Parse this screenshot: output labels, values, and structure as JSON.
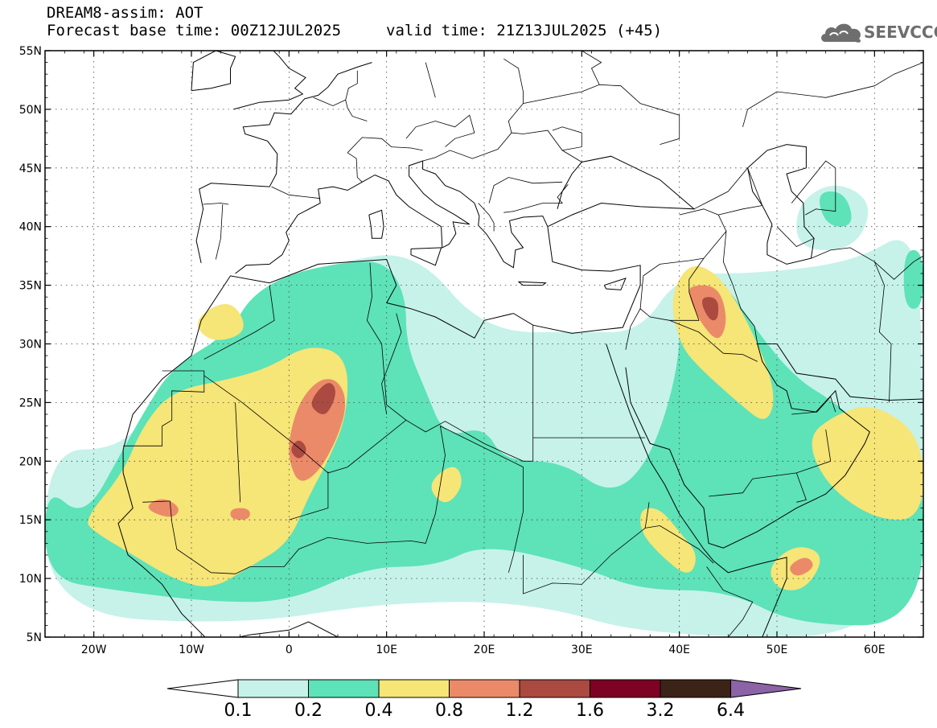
{
  "header": {
    "line1": "DREAM8-assim: AOT",
    "line2_left": "Forecast base time: 00Z12JUL2025",
    "line2_right": "valid time: 21Z13JUL2025 (+45)"
  },
  "logo": {
    "text": "SEEVCCC",
    "icon": "cloud-logo-icon",
    "color": "#6e6e6e"
  },
  "map": {
    "lon_range": [
      -25,
      65
    ],
    "lat_range": [
      5,
      55
    ],
    "lat_ticks": [
      {
        "lat": 55,
        "label": "55N"
      },
      {
        "lat": 50,
        "label": "50N"
      },
      {
        "lat": 45,
        "label": "45N"
      },
      {
        "lat": 40,
        "label": "40N"
      },
      {
        "lat": 35,
        "label": "35N"
      },
      {
        "lat": 30,
        "label": "30N"
      },
      {
        "lat": 25,
        "label": "25N"
      },
      {
        "lat": 20,
        "label": "20N"
      },
      {
        "lat": 15,
        "label": "15N"
      },
      {
        "lat": 10,
        "label": "10N"
      },
      {
        "lat": 5,
        "label": "5N"
      }
    ],
    "lon_ticks": [
      {
        "lon": -20,
        "label": "20W"
      },
      {
        "lon": -10,
        "label": "10W"
      },
      {
        "lon": 0,
        "label": "0"
      },
      {
        "lon": 10,
        "label": "10E"
      },
      {
        "lon": 20,
        "label": "20E"
      },
      {
        "lon": 30,
        "label": "30E"
      },
      {
        "lon": 40,
        "label": "40E"
      },
      {
        "lon": 50,
        "label": "50E"
      },
      {
        "lon": 60,
        "label": "60E"
      }
    ],
    "gridlines": true
  },
  "colorbar": {
    "colors": [
      "#c6f2ea",
      "#5ee2b8",
      "#f6e577",
      "#eb8a68",
      "#aa4a40",
      "#7d0224",
      "#3c2318"
    ],
    "over_color": "#8c63a6",
    "under_color": "#ffffff",
    "labels": [
      "0.1",
      "0.2",
      "0.4",
      "0.8",
      "1.2",
      "1.6",
      "3.2",
      "6.4"
    ]
  },
  "field": {
    "name": "AOT",
    "levels": [
      {
        "level": 0.1,
        "regions": [
          [
            [
              -25,
              21
            ],
            [
              -17,
              21
            ],
            [
              -13,
              26
            ],
            [
              -8,
              30
            ],
            [
              -2,
              35
            ],
            [
              5,
              37
            ],
            [
              13,
              38
            ],
            [
              20,
              31
            ],
            [
              30,
              31
            ],
            [
              36,
              31
            ],
            [
              40,
              36
            ],
            [
              48,
              36
            ],
            [
              58,
              37
            ],
            [
              64,
              40
            ],
            [
              65,
              30
            ],
            [
              65,
              5
            ],
            [
              37,
              5
            ],
            [
              25,
              8
            ],
            [
              10,
              8
            ],
            [
              -5,
              6
            ],
            [
              -25,
              7
            ]
          ],
          [
            [
              56,
              44
            ],
            [
              52,
              42
            ],
            [
              52,
              38
            ],
            [
              58,
              38
            ],
            [
              60,
              42
            ]
          ]
        ]
      },
      {
        "level": 0.2,
        "regions": [
          [
            [
              -25,
              18
            ],
            [
              -21,
              15
            ],
            [
              -17,
              21
            ],
            [
              -15,
              24
            ],
            [
              -12,
              28
            ],
            [
              -6,
              31
            ],
            [
              -4,
              34
            ],
            [
              0,
              36
            ],
            [
              6,
              37
            ],
            [
              10,
              37
            ],
            [
              12,
              34
            ],
            [
              12,
              30
            ],
            [
              14,
              26
            ],
            [
              16,
              22
            ],
            [
              20,
              23
            ],
            [
              22,
              20
            ],
            [
              28,
              20
            ],
            [
              33,
              17
            ],
            [
              37,
              20
            ],
            [
              40,
              28
            ],
            [
              40,
              34
            ],
            [
              44,
              36
            ],
            [
              48,
              31
            ],
            [
              52,
              27
            ],
            [
              56,
              25
            ],
            [
              60,
              22
            ],
            [
              65,
              21
            ],
            [
              65,
              6
            ],
            [
              52,
              6
            ],
            [
              45,
              9
            ],
            [
              36,
              9
            ],
            [
              30,
              11
            ],
            [
              20,
              13
            ],
            [
              15,
              11
            ],
            [
              8,
              11
            ],
            [
              0,
              8
            ],
            [
              -8,
              8
            ],
            [
              -18,
              9
            ],
            [
              -25,
              10
            ]
          ],
          [
            [
              54,
              43
            ],
            [
              57,
              43
            ],
            [
              58,
              40
            ],
            [
              55,
              40
            ]
          ],
          [
            [
              63,
              38
            ],
            [
              65,
              38
            ],
            [
              65,
              33
            ],
            [
              63,
              33
            ]
          ]
        ]
      },
      {
        "level": 0.4,
        "regions": [
          [
            [
              -21,
              15
            ],
            [
              -17,
              19
            ],
            [
              -15,
              23
            ],
            [
              -12,
              26
            ],
            [
              -6,
              27
            ],
            [
              -2,
              28
            ],
            [
              2,
              30
            ],
            [
              6,
              29
            ],
            [
              6,
              24
            ],
            [
              4,
              20
            ],
            [
              2,
              17
            ],
            [
              0,
              13
            ],
            [
              -4,
              11
            ],
            [
              -8,
              9
            ],
            [
              -12,
              10
            ],
            [
              -16,
              12
            ],
            [
              -20,
              14
            ]
          ],
          [
            [
              39,
              34
            ],
            [
              41,
              37
            ],
            [
              44,
              36
            ],
            [
              47,
              32
            ],
            [
              50,
              26
            ],
            [
              49,
              23
            ],
            [
              46,
              25
            ],
            [
              42,
              28
            ],
            [
              40,
              30
            ]
          ],
          [
            [
              53,
              22
            ],
            [
              56,
              24
            ],
            [
              60,
              25
            ],
            [
              65,
              22
            ],
            [
              65,
              15
            ],
            [
              60,
              15
            ],
            [
              55,
              18
            ]
          ],
          [
            [
              36,
              16
            ],
            [
              38,
              16
            ],
            [
              40,
              14
            ],
            [
              42,
              12
            ],
            [
              41,
              10
            ],
            [
              38,
              12
            ],
            [
              36,
              14
            ]
          ],
          [
            [
              49,
              11
            ],
            [
              52,
              13
            ],
            [
              55,
              12
            ],
            [
              53,
              9
            ],
            [
              50,
              9
            ]
          ],
          [
            [
              14,
              18
            ],
            [
              17,
              20
            ],
            [
              18,
              18
            ],
            [
              16,
              16
            ]
          ],
          [
            [
              -10,
              32
            ],
            [
              -6,
              34
            ],
            [
              -4,
              31
            ],
            [
              -8,
              30
            ]
          ]
        ]
      },
      {
        "level": 0.8,
        "regions": [
          [
            [
              0,
              22
            ],
            [
              1,
              25
            ],
            [
              3,
              27
            ],
            [
              5,
              27
            ],
            [
              6,
              25
            ],
            [
              5,
              22
            ],
            [
              3,
              19
            ],
            [
              1,
              18
            ],
            [
              0,
              20
            ]
          ],
          [
            [
              41,
              35
            ],
            [
              44,
              35
            ],
            [
              45,
              32
            ],
            [
              44,
              30
            ],
            [
              42,
              32
            ],
            [
              41,
              34
            ]
          ],
          [
            [
              -15,
              16
            ],
            [
              -13,
              17
            ],
            [
              -11,
              16
            ],
            [
              -12,
              15
            ]
          ],
          [
            [
              -6,
              16
            ],
            [
              -4,
              16
            ],
            [
              -4,
              15
            ],
            [
              -6,
              15
            ]
          ],
          [
            [
              51,
              11
            ],
            [
              53,
              12
            ],
            [
              54,
              11
            ],
            [
              52,
              10
            ]
          ]
        ]
      },
      {
        "level": 1.2,
        "regions": [
          [
            [
              2,
              25
            ],
            [
              4,
              27
            ],
            [
              5,
              26
            ],
            [
              4,
              24
            ],
            [
              3,
              24
            ]
          ],
          [
            [
              42,
              34
            ],
            [
              44,
              34
            ],
            [
              44,
              32
            ],
            [
              43,
              32
            ]
          ],
          [
            [
              0,
              21
            ],
            [
              1,
              22
            ],
            [
              2,
              21
            ],
            [
              1,
              20
            ]
          ]
        ]
      }
    ]
  }
}
